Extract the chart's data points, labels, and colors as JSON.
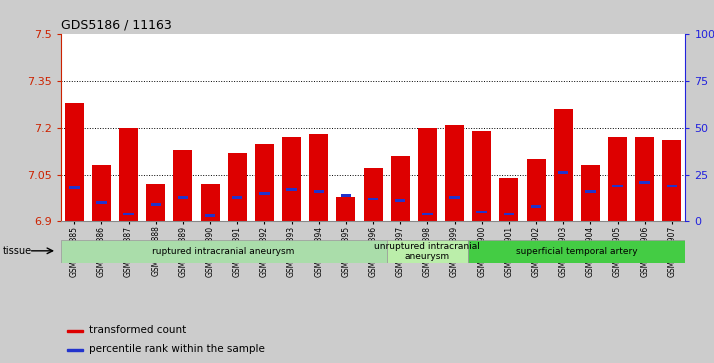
{
  "title": "GDS5186 / 11163",
  "samples": [
    "GSM1306885",
    "GSM1306886",
    "GSM1306887",
    "GSM1306888",
    "GSM1306889",
    "GSM1306890",
    "GSM1306891",
    "GSM1306892",
    "GSM1306893",
    "GSM1306894",
    "GSM1306895",
    "GSM1306896",
    "GSM1306897",
    "GSM1306898",
    "GSM1306899",
    "GSM1306900",
    "GSM1306901",
    "GSM1306902",
    "GSM1306903",
    "GSM1306904",
    "GSM1306905",
    "GSM1306906",
    "GSM1306907"
  ],
  "transformed_count": [
    7.28,
    7.08,
    7.2,
    7.02,
    7.13,
    7.02,
    7.12,
    7.15,
    7.17,
    7.18,
    6.98,
    7.07,
    7.11,
    7.2,
    7.21,
    7.19,
    7.04,
    7.1,
    7.26,
    7.08,
    7.17,
    7.17,
    7.16
  ],
  "percentile_rank": [
    18,
    10,
    4,
    9,
    13,
    3,
    13,
    15,
    17,
    16,
    14,
    12,
    11,
    4,
    13,
    5,
    4,
    8,
    26,
    16,
    19,
    21,
    19
  ],
  "y_min": 6.9,
  "y_max": 7.5,
  "y_ticks": [
    6.9,
    7.05,
    7.2,
    7.35,
    7.5
  ],
  "right_y_ticks": [
    0,
    25,
    50,
    75,
    100
  ],
  "right_y_labels": [
    "0",
    "25",
    "50",
    "75",
    "100%"
  ],
  "bar_color": "#dd0000",
  "percentile_color": "#2233cc",
  "bg_color": "#cccccc",
  "plot_bg": "#ffffff",
  "tissue_groups": [
    {
      "label": "ruptured intracranial aneurysm",
      "start": 0,
      "end": 12,
      "color": "#aaddaa"
    },
    {
      "label": "unruptured intracranial\naneurysm",
      "start": 12,
      "end": 15,
      "color": "#bbeeaa"
    },
    {
      "label": "superficial temporal artery",
      "start": 15,
      "end": 23,
      "color": "#44cc44"
    }
  ],
  "legend_items": [
    {
      "label": "transformed count",
      "color": "#dd0000"
    },
    {
      "label": "percentile rank within the sample",
      "color": "#2233cc"
    }
  ],
  "tissue_label": "tissue",
  "left_axis_color": "#cc2200",
  "right_axis_color": "#2222dd"
}
